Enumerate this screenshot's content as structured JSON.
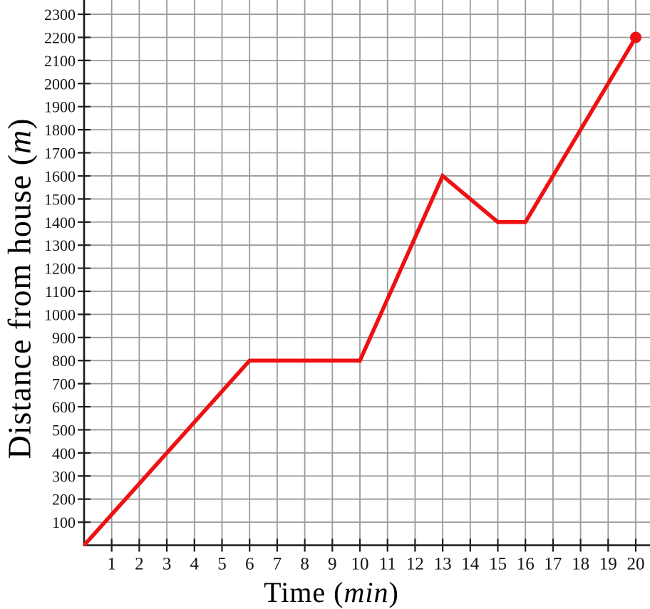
{
  "chart_data": {
    "type": "line",
    "title": "",
    "xlabel": {
      "prefix": "Time (",
      "italic_unit": "min",
      "suffix": ")"
    },
    "ylabel": {
      "prefix": "Distance from house  (",
      "italic_unit": "m",
      "suffix": ")"
    },
    "x_tick_labels": [
      1,
      2,
      3,
      4,
      5,
      6,
      7,
      8,
      9,
      10,
      11,
      12,
      13,
      14,
      15,
      16,
      17,
      18,
      19,
      20
    ],
    "y_tick_labels": [
      100,
      200,
      300,
      400,
      500,
      600,
      700,
      800,
      900,
      1000,
      1100,
      1200,
      1300,
      1400,
      1500,
      1600,
      1700,
      1800,
      1900,
      2000,
      2100,
      2200,
      2300
    ],
    "xlim": [
      0,
      20.5
    ],
    "ylim": [
      0,
      2360
    ],
    "grid": true,
    "legend": "none",
    "series": [
      {
        "name": "distance-from-house",
        "points": [
          [
            0,
            0
          ],
          [
            6,
            800
          ],
          [
            10,
            800
          ],
          [
            13,
            1600
          ],
          [
            15,
            1400
          ],
          [
            16,
            1400
          ],
          [
            20,
            2200
          ]
        ],
        "color": "#ee1111",
        "endpoint_marker": {
          "x": 20,
          "y": 2200,
          "shape": "circle"
        }
      }
    ],
    "colors": {
      "grid": "#9b9b9b",
      "axis": "#1c1c1c",
      "tick": "#1c1c1c",
      "tick_label": "#141418",
      "line": "#ee1111",
      "background": "#ffffff"
    }
  }
}
